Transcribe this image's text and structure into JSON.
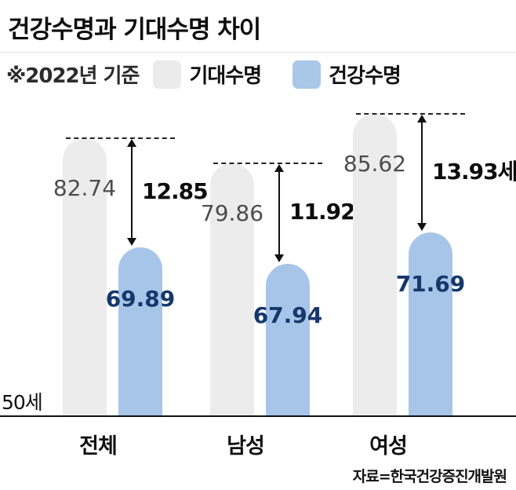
{
  "title": "건강수명과 기대수명 차이",
  "legend": {
    "note": "※2022년 기준",
    "items": [
      {
        "label": "기대수명",
        "color": "#ebebeb"
      },
      {
        "label": "건강수명",
        "color": "#a9c7e9"
      }
    ]
  },
  "baseline_label": "50세",
  "source": "자료=한국건강증진개발원",
  "chart_data": {
    "type": "bar",
    "title": "건강수명과 기대수명 차이",
    "subtitle": "※2022년 기준",
    "categories": [
      "전체",
      "남성",
      "여성"
    ],
    "series": [
      {
        "name": "기대수명",
        "values": [
          82.74,
          79.86,
          85.62
        ],
        "color": "#ececec"
      },
      {
        "name": "건강수명",
        "values": [
          69.89,
          67.94,
          71.69
        ],
        "color": "#a7c5e8"
      }
    ],
    "differences": [
      "12.85",
      "11.92",
      "13.93세"
    ],
    "baseline": 50,
    "ylim": [
      50,
      90
    ],
    "unit": "세",
    "legend_position": "top",
    "grid": false,
    "annotations": "double-headed arrows mark the gap between life expectancy and healthy life expectancy per group"
  }
}
